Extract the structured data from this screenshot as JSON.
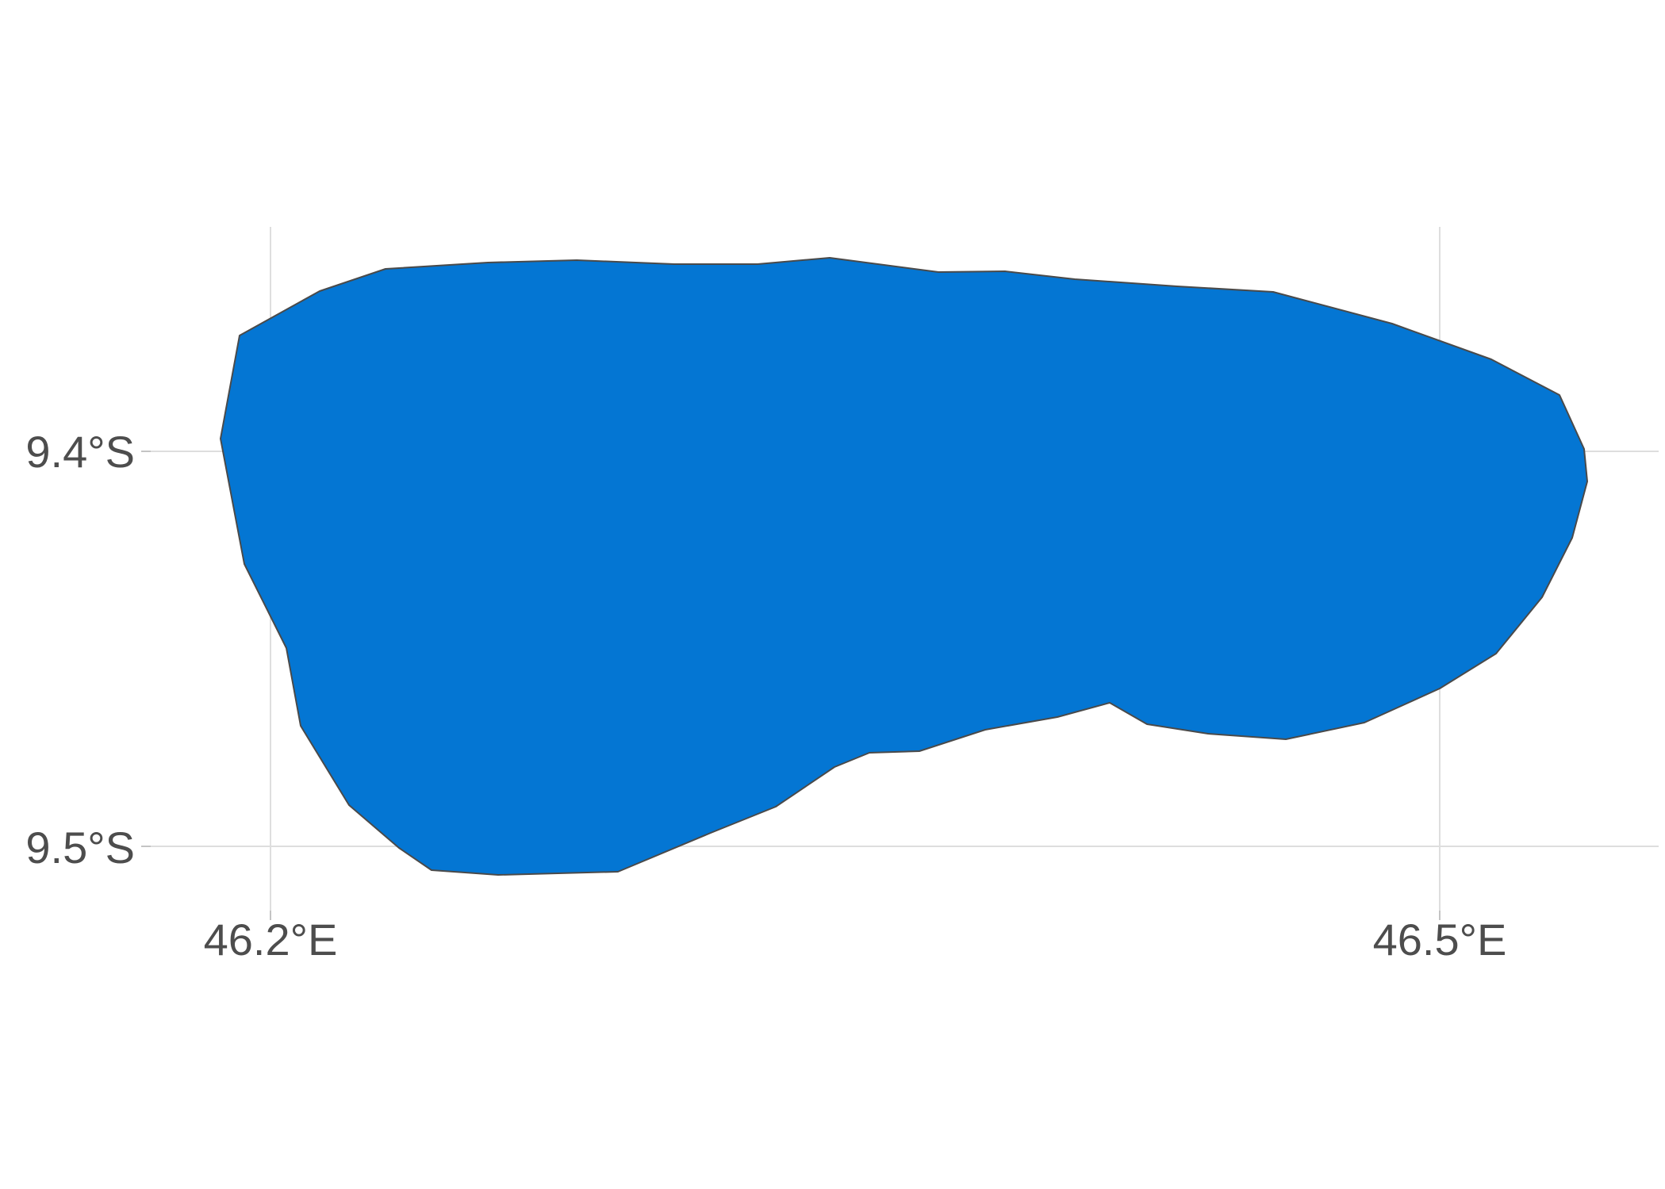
{
  "map": {
    "fill_color": "#0476d3",
    "border_color": "#4a4a4a",
    "grid_color": "#dedede",
    "label_color": "#4d4d4d",
    "x_axis": {
      "ticks": [
        {
          "value": 46.2,
          "label": "46.2°E"
        },
        {
          "value": 46.5,
          "label": "46.5°E"
        }
      ]
    },
    "y_axis": {
      "ticks": [
        {
          "value": -9.4,
          "label": "9.4°S"
        },
        {
          "value": -9.5,
          "label": "9.5°S"
        }
      ]
    },
    "lon_range": [
      46.1325,
      46.6075
    ],
    "lat_range": [
      -9.5425,
      -9.3325
    ]
  }
}
